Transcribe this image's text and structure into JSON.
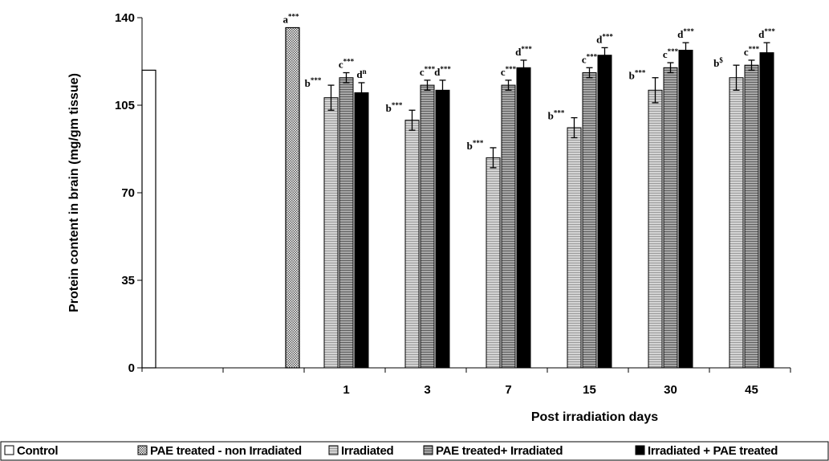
{
  "chart_data": {
    "type": "bar",
    "ylabel": "Protein content in brain (mg/gm tissue)",
    "xlabel": "Post irradiation days",
    "ylim": [
      0,
      140
    ],
    "yticks": [
      0,
      35,
      70,
      105,
      140
    ],
    "grid": false,
    "legend_position": "bottom",
    "legend": [
      "Control",
      "PAE treated - non Irradiated",
      "Irradiated",
      "PAE treated+ Irradiated",
      "Irradiated + PAE treated"
    ],
    "reference_bars": [
      {
        "name": "Control",
        "value": 119,
        "label": ""
      },
      {
        "name": "PAE treated - non Irradiated",
        "value": 136,
        "label": "a",
        "sig": "***"
      }
    ],
    "categories": [
      "1",
      "3",
      "7",
      "15",
      "30",
      "45"
    ],
    "series": [
      {
        "name": "Irradiated",
        "values": [
          108,
          99,
          84,
          96,
          111,
          116
        ],
        "errors": [
          5,
          4,
          4,
          4,
          5,
          5
        ],
        "labels": [
          "b",
          "b",
          "b",
          "b",
          "b",
          "b"
        ],
        "sig": [
          "***",
          "***",
          "***",
          "***",
          "***",
          "$"
        ]
      },
      {
        "name": "PAE treated+ Irradiated",
        "values": [
          116,
          113,
          113,
          118,
          120,
          121
        ],
        "errors": [
          2,
          2,
          2,
          2,
          2,
          2
        ],
        "labels": [
          "c",
          "c",
          "c",
          "c",
          "c",
          "c"
        ],
        "sig": [
          "***",
          "***",
          "***",
          "***",
          "***",
          "***"
        ]
      },
      {
        "name": "Irradiated + PAE treated",
        "values": [
          110,
          111,
          120,
          125,
          127,
          126
        ],
        "errors": [
          4,
          4,
          3,
          3,
          3,
          4
        ],
        "labels": [
          "d",
          "d",
          "d",
          "d",
          "d",
          "d"
        ],
        "sig": [
          "n",
          "***",
          "***",
          "***",
          "***",
          "***"
        ]
      }
    ],
    "colors": {
      "control": "#ffffff",
      "pae_non_irradiated": "#b4b4b4",
      "irradiated": "#c2c2c2",
      "pae_irradiated": "#8f8f8f",
      "irradiated_pae": "#000000"
    }
  }
}
